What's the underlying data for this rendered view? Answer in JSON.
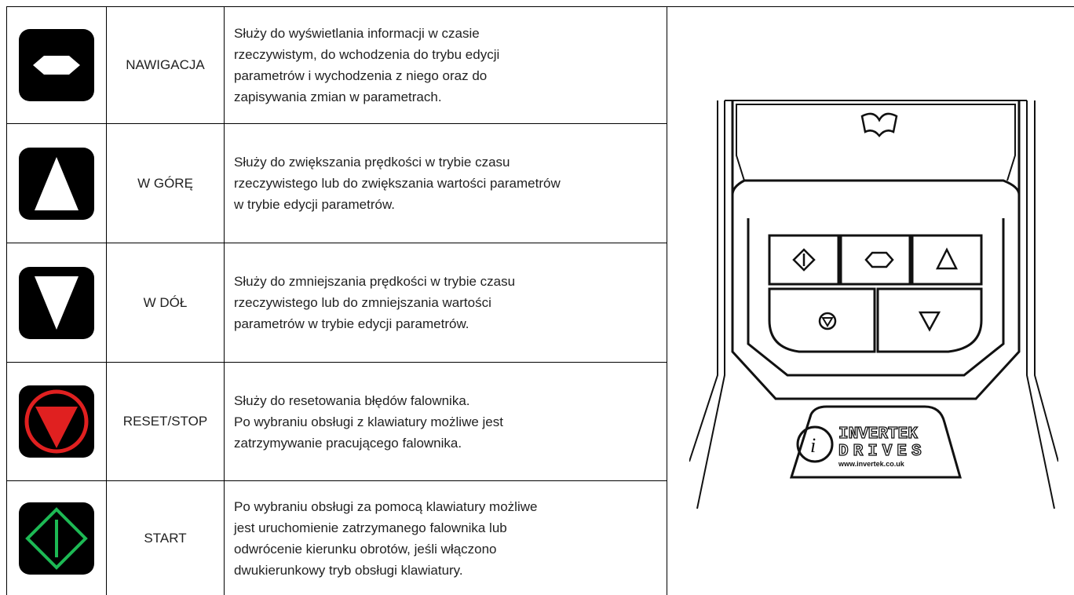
{
  "table": {
    "rows": [
      {
        "name": "NAWIGACJA",
        "description": [
          "Służy do wyświetlania informacji w czasie",
          "rzeczywistym, do wchodzenia do trybu edycji",
          "parametrów i wychodzenia z niego oraz do",
          "zapisywania zmian w parametrach."
        ]
      },
      {
        "name": "W GÓRĘ",
        "description": [
          "Służy do zwiększania prędkości w trybie czasu",
          "rzeczywistego lub do zwiększania wartości parametrów",
          "w trybie edycji parametrów."
        ]
      },
      {
        "name": "W DÓŁ",
        "description": [
          "Służy do zmniejszania prędkości w trybie czasu",
          "rzeczywistego lub do zmniejszania wartości",
          "parametrów w trybie edycji parametrów."
        ]
      },
      {
        "name": "RESET/STOP",
        "description": [
          "Służy do resetowania błędów falownika.",
          "Po wybraniu obsługi z klawiatury możliwe jest",
          "zatrzymywanie pracującego falownika."
        ]
      },
      {
        "name": "START",
        "description": [
          "Po wybraniu obsługi za pomocą klawiatury możliwe",
          "jest uruchomienie zatrzymanego falownika lub",
          "odwrócenie kierunku obrotów, jeśli włączono",
          "dwukierunkowy tryb obsługi klawiatury."
        ]
      }
    ]
  },
  "keypad": {
    "logo": [
      "INVERTEK",
      "DRIVES",
      "www.invertek.co.uk"
    ]
  }
}
